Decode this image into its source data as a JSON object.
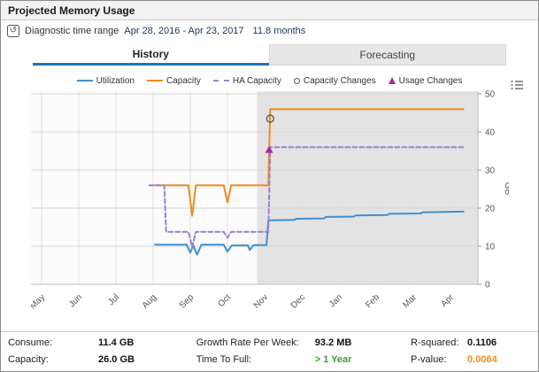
{
  "window": {
    "title": "Projected Memory Usage"
  },
  "toolbar": {
    "time_range_label": "Diagnostic time range",
    "time_range_value": "Apr 28, 2016 - Apr 23, 2017",
    "duration": "11.8 months",
    "refresh_icon": "clock-power-icon"
  },
  "tabs": [
    {
      "label": "History",
      "active": true
    },
    {
      "label": "Forecasting",
      "active": false
    }
  ],
  "legend": [
    {
      "label": "Utilization",
      "type": "line",
      "color": "#3f8fd2"
    },
    {
      "label": "Capacity",
      "type": "line",
      "color": "#f08a1d"
    },
    {
      "label": "HA Capacity",
      "type": "dashed",
      "color": "#9b7fd4"
    },
    {
      "label": "Capacity Changes",
      "type": "circle",
      "color": "#4a5568"
    },
    {
      "label": "Usage Changes",
      "type": "triangle",
      "color": "#a82a9f"
    }
  ],
  "chart_data": {
    "type": "line",
    "x_categories": [
      "May",
      "Jun",
      "Jul",
      "Aug",
      "Sep",
      "Oct",
      "Nov",
      "Dec",
      "Jan",
      "Feb",
      "Mar",
      "Apr"
    ],
    "ylabel": "GB",
    "ylim": [
      0,
      50
    ],
    "yticks": [
      0,
      10,
      20,
      30,
      40,
      50
    ],
    "grid": true,
    "legend_position": "top",
    "forecast_start_month": 5.8,
    "series": [
      {
        "name": "Utilization",
        "color": "#3f8fd2",
        "dash": null,
        "points": [
          [
            3.05,
            10.4
          ],
          [
            3.9,
            10.4
          ],
          [
            4.0,
            8.3
          ],
          [
            4.08,
            10.2
          ],
          [
            4.18,
            7.8
          ],
          [
            4.3,
            10.4
          ],
          [
            4.9,
            10.4
          ],
          [
            5.0,
            8.6
          ],
          [
            5.12,
            10.2
          ],
          [
            5.55,
            10.2
          ],
          [
            5.6,
            9.0
          ],
          [
            5.7,
            10.3
          ],
          [
            6.05,
            10.3
          ],
          [
            6.1,
            16.8
          ],
          [
            6.8,
            16.9
          ],
          [
            6.85,
            17.2
          ],
          [
            7.6,
            17.3
          ],
          [
            7.65,
            17.7
          ],
          [
            8.4,
            17.8
          ],
          [
            8.45,
            18.1
          ],
          [
            9.3,
            18.2
          ],
          [
            9.35,
            18.5
          ],
          [
            10.2,
            18.6
          ],
          [
            10.25,
            18.9
          ],
          [
            11.35,
            19.1
          ]
        ]
      },
      {
        "name": "Capacity",
        "color": "#f08a1d",
        "dash": null,
        "points": [
          [
            3.05,
            26
          ],
          [
            3.95,
            26
          ],
          [
            4.05,
            18
          ],
          [
            4.15,
            26
          ],
          [
            4.9,
            26
          ],
          [
            5.0,
            21.5
          ],
          [
            5.1,
            26
          ],
          [
            6.1,
            26
          ],
          [
            6.15,
            46
          ],
          [
            11.35,
            46
          ]
        ]
      },
      {
        "name": "HA Capacity",
        "color": "#9b7fd4",
        "dash": "5,3",
        "points": [
          [
            2.9,
            26
          ],
          [
            3.3,
            26
          ],
          [
            3.35,
            13.8
          ],
          [
            3.95,
            13.8
          ],
          [
            4.05,
            9.8
          ],
          [
            4.15,
            13.8
          ],
          [
            4.9,
            13.8
          ],
          [
            5.0,
            12.2
          ],
          [
            5.1,
            13.8
          ],
          [
            6.1,
            13.8
          ],
          [
            6.15,
            36
          ],
          [
            11.35,
            36
          ]
        ]
      }
    ],
    "markers": [
      {
        "name": "capacity-change",
        "shape": "circle",
        "x": 6.15,
        "y": 43.5,
        "color": "#4a5568"
      },
      {
        "name": "usage-change",
        "shape": "triangle",
        "x": 6.12,
        "y": 35.2,
        "color": "#a82a9f"
      }
    ]
  },
  "stats": {
    "rows": [
      [
        {
          "label": "Consume:",
          "value": "11.4 GB"
        },
        {
          "label": "Growth Rate Per Week:",
          "value": "93.2 MB"
        },
        {
          "label": "R-squared:",
          "value": "0.1106"
        }
      ],
      [
        {
          "label": "Capacity:",
          "value": "26.0 GB"
        },
        {
          "label": "Time To Full:",
          "value": "> 1 Year"
        },
        {
          "label": "P-value:",
          "value": "0.0064"
        }
      ]
    ]
  }
}
